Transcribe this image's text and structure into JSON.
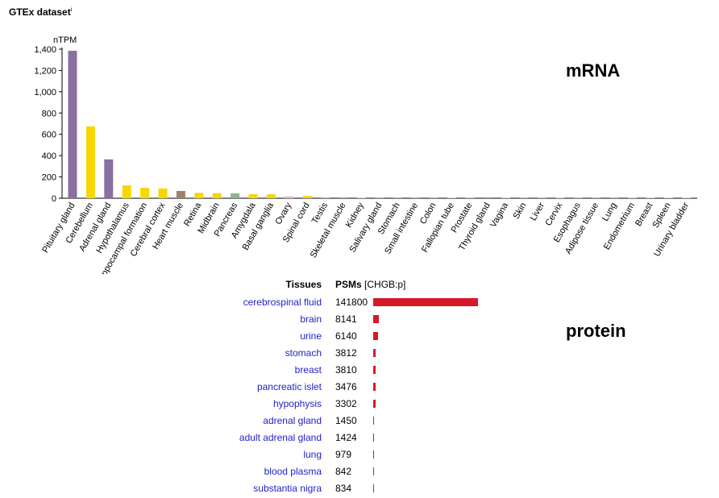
{
  "header": {
    "title": "GTEx dataset",
    "info_mark": "i"
  },
  "labels": {
    "mrna": "mRNA",
    "protein": "protein"
  },
  "chart_data": {
    "type": "bar",
    "ylabel": "nTPM",
    "ylim": [
      0,
      1400
    ],
    "yticks": [
      0,
      200,
      400,
      600,
      800,
      1000,
      1200,
      1400
    ],
    "ytick_labels": [
      "0",
      "200",
      "400",
      "600",
      "800",
      "1,000",
      "1,200",
      "1,400"
    ],
    "categories": [
      "Pituitary gland",
      "Cerebellum",
      "Adrenal gland",
      "Hypothalamus",
      "Hippocampal formation",
      "Cerebral cortex",
      "Heart muscle",
      "Retina",
      "Midbrain",
      "Pancreas",
      "Amygdala",
      "Basal ganglia",
      "Ovary",
      "Spinal cord",
      "Testis",
      "Skeletal muscle",
      "Kidney",
      "Salivary gland",
      "Stomach",
      "Small intestine",
      "Colon",
      "Fallopian tube",
      "Prostate",
      "Thyroid gland",
      "Vagina",
      "Skin",
      "Liver",
      "Cervix",
      "Esophagus",
      "Adipose tissue",
      "Lung",
      "Endometrium",
      "Breast",
      "Spleen",
      "Urinary bladder"
    ],
    "values": [
      1385,
      675,
      365,
      120,
      98,
      92,
      68,
      50,
      47,
      46,
      38,
      37,
      18,
      22,
      8,
      6,
      5,
      4,
      6,
      5,
      5,
      3,
      3,
      3,
      2,
      2,
      2,
      2,
      2,
      2,
      1,
      1,
      1,
      1,
      1
    ],
    "colors": [
      "#8a6fa0",
      "#f7d700",
      "#8a6fa0",
      "#f7d700",
      "#f7d700",
      "#f7d700",
      "#a0806a",
      "#f7d700",
      "#f7d700",
      "#8ab88a",
      "#f7d700",
      "#f7d700",
      "#f0b8c8",
      "#f7d700",
      "#88c8d8",
      "#a0806a",
      "#e8c8a0",
      "#8ab88a",
      "#6ab8b0",
      "#6ab8b0",
      "#6ab8b0",
      "#f0b8c8",
      "#88c8d8",
      "#8a6fa0",
      "#f0b8c8",
      "#c8a888",
      "#c8a888",
      "#f0b8c8",
      "#c8a888",
      "#c8a888",
      "#88a8d8",
      "#f0b8c8",
      "#f0b8c8",
      "#c8c8c8",
      "#e8c8a0"
    ]
  },
  "protein_table": {
    "tissues_header": "Tissues",
    "psms_header": "PSMs",
    "psms_suffix": "[CHGB:p]",
    "bar_color": "#d7182a",
    "bar_max": 141800,
    "rows": [
      {
        "tissue": "cerebrospinal fluid",
        "value": 141800
      },
      {
        "tissue": "brain",
        "value": 8141
      },
      {
        "tissue": "urine",
        "value": 6140
      },
      {
        "tissue": "stomach",
        "value": 3812
      },
      {
        "tissue": "breast",
        "value": 3810
      },
      {
        "tissue": "pancreatic islet",
        "value": 3476
      },
      {
        "tissue": "hypophysis",
        "value": 3302
      },
      {
        "tissue": "adrenal gland",
        "value": 1450
      },
      {
        "tissue": "adult adrenal gland",
        "value": 1424
      },
      {
        "tissue": "lung",
        "value": 979
      },
      {
        "tissue": "blood plasma",
        "value": 842
      },
      {
        "tissue": "substantia nigra",
        "value": 834
      }
    ]
  }
}
